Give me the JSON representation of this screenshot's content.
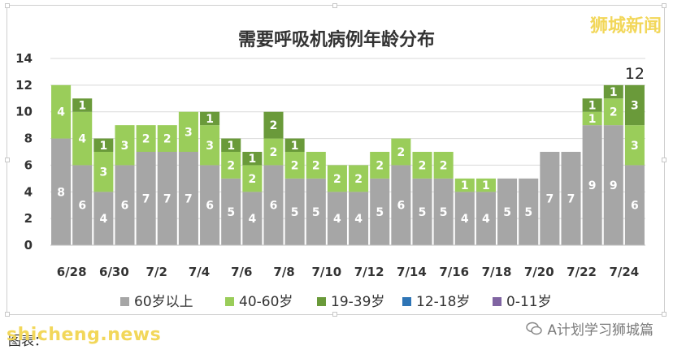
{
  "watermark_top": "狮城新闻",
  "wechat_label": "A计划学习狮城篇",
  "source_text": "图表：",
  "brand_text": "shicheng.news",
  "chart_data": {
    "type": "bar",
    "stacked": true,
    "title": "需要呼吸机病例年龄分布",
    "categories": [
      "6/28",
      "6/29",
      "6/30",
      "7/1",
      "7/2",
      "7/3",
      "7/4",
      "7/5",
      "7/6",
      "7/7",
      "7/8",
      "7/9",
      "7/10",
      "7/11",
      "7/12",
      "7/13",
      "7/14",
      "7/15",
      "7/16",
      "7/17",
      "7/18",
      "7/19",
      "7/20",
      "7/21",
      "7/22",
      "7/23",
      "7/24",
      "7/25"
    ],
    "tick_labels": [
      "6/28",
      "6/30",
      "7/2",
      "7/4",
      "7/6",
      "7/8",
      "7/10",
      "7/12",
      "7/14",
      "7/16",
      "7/18",
      "7/20",
      "7/22",
      "7/24"
    ],
    "ylim": [
      0,
      14
    ],
    "yticks": [
      0,
      2,
      4,
      6,
      8,
      10,
      12,
      14
    ],
    "grid": true,
    "legend_position": "bottom",
    "series": [
      {
        "name": "60岁以上",
        "color": "#a6a6a6",
        "values": [
          8,
          6,
          4,
          6,
          7,
          7,
          7,
          6,
          5,
          4,
          6,
          5,
          5,
          4,
          4,
          5,
          6,
          5,
          5,
          4,
          4,
          5,
          5,
          7,
          7,
          9,
          9,
          6
        ]
      },
      {
        "name": "40-60岁",
        "color": "#9acd5a",
        "values": [
          4,
          4,
          3,
          3,
          2,
          2,
          3,
          3,
          2,
          2,
          2,
          2,
          2,
          2,
          2,
          2,
          2,
          2,
          2,
          1,
          1,
          0,
          0,
          0,
          0,
          1,
          2,
          3
        ]
      },
      {
        "name": "19-39岁",
        "color": "#6a9a3a",
        "values": [
          0,
          1,
          1,
          0,
          0,
          0,
          0,
          1,
          1,
          1,
          2,
          1,
          0,
          0,
          0,
          0,
          0,
          0,
          0,
          0,
          0,
          0,
          0,
          0,
          0,
          1,
          1,
          3
        ]
      },
      {
        "name": "12-18岁",
        "color": "#2e75b6",
        "values": [
          0,
          0,
          0,
          0,
          0,
          0,
          0,
          0,
          0,
          0,
          0,
          0,
          0,
          0,
          0,
          0,
          0,
          0,
          0,
          0,
          0,
          0,
          0,
          0,
          0,
          0,
          0,
          0
        ]
      },
      {
        "name": "0-11岁",
        "color": "#8064a2",
        "values": [
          0,
          0,
          0,
          0,
          0,
          0,
          0,
          0,
          0,
          0,
          0,
          0,
          0,
          0,
          0,
          0,
          0,
          0,
          0,
          0,
          0,
          0,
          0,
          0,
          0,
          0,
          0,
          0
        ]
      }
    ],
    "total_labels": [
      {
        "category": "7/25",
        "text": "12"
      }
    ]
  }
}
